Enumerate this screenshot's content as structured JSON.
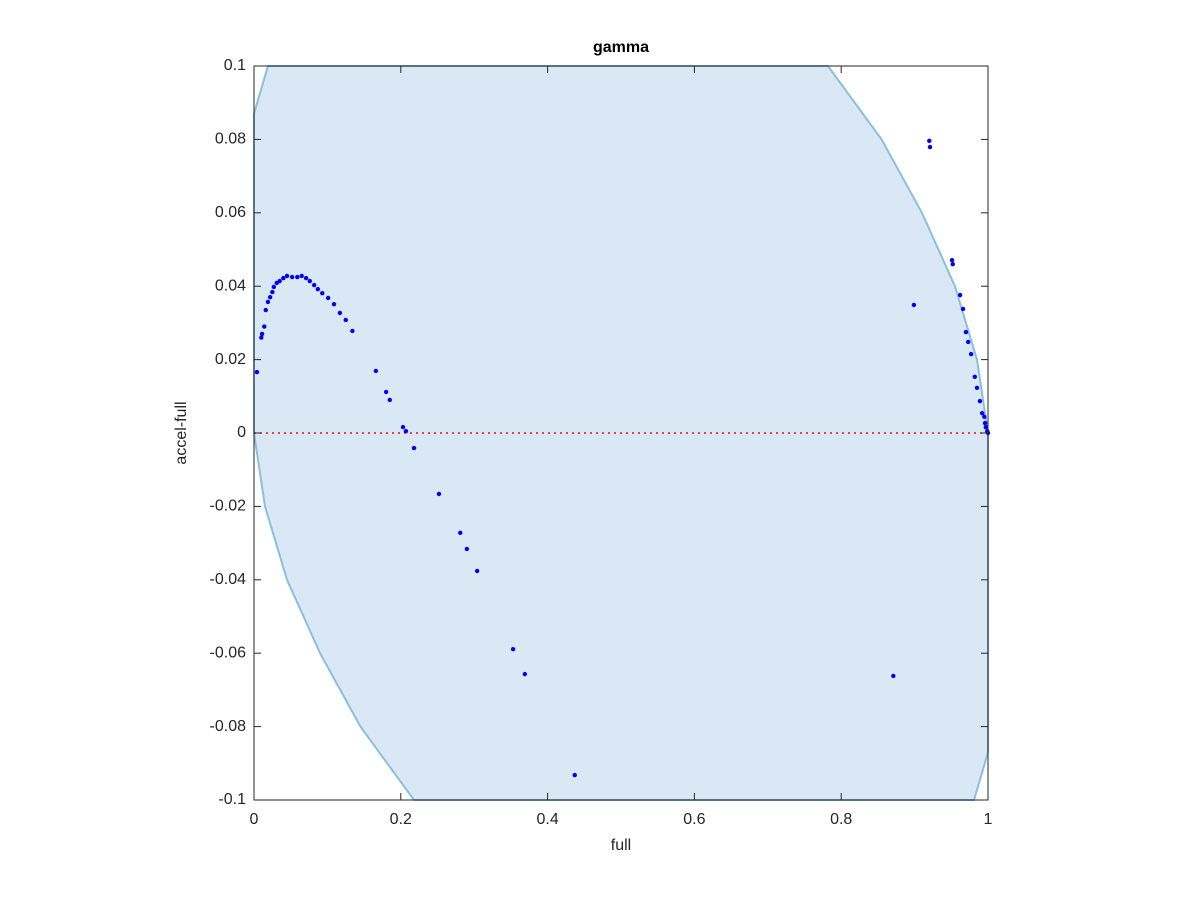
{
  "chart_data": {
    "type": "scatter",
    "title": "gamma",
    "x_label": "full",
    "y_label": "accel-full",
    "xlim": [
      0,
      1
    ],
    "ylim": [
      -0.1,
      0.1
    ],
    "xticks": [
      0,
      0.2,
      0.4,
      0.6,
      0.8,
      1
    ],
    "yticks": [
      -0.1,
      -0.08,
      -0.06,
      -0.04,
      -0.02,
      0,
      0.02,
      0.04,
      0.06,
      0.08,
      0.1
    ],
    "fill_region": {
      "color": "#d9e8f4",
      "edge_color": "#8bbfe0",
      "x": [
        0,
        0.019,
        0.782,
        0.855,
        0.91,
        0.955,
        0.985,
        1,
        1,
        0.981,
        0.218,
        0.145,
        0.09,
        0.045,
        0.015,
        0
      ],
      "y": [
        0.087,
        0.1,
        0.1,
        0.08,
        0.06,
        0.04,
        0.02,
        0,
        -0.087,
        -0.1,
        -0.1,
        -0.08,
        -0.06,
        -0.04,
        -0.02,
        0
      ]
    },
    "reference_line": {
      "y": 0,
      "color": "#ff0000"
    },
    "series": [
      {
        "color": "#0000ff",
        "x": [
          0.004,
          0.01,
          0.011,
          0.014,
          0.016,
          0.019,
          0.022,
          0.025,
          0.027,
          0.031,
          0.035,
          0.04,
          0.045,
          0.052,
          0.059,
          0.065,
          0.071,
          0.076,
          0.082,
          0.087,
          0.093,
          0.101,
          0.109,
          0.117,
          0.125,
          0.134,
          0.166,
          0.18,
          0.185,
          0.203,
          0.207,
          0.218,
          0.252,
          0.281,
          0.29,
          0.304,
          0.353,
          0.369,
          0.437,
          0.871,
          0.899,
          0.92,
          0.921,
          0.951,
          0.952,
          0.962,
          0.966,
          0.97,
          0.973,
          0.977,
          0.982,
          0.985,
          0.989,
          0.992,
          0.995,
          0.996,
          0.997,
          0.999,
          1.0
        ],
        "values": [
          0.0166,
          0.026,
          0.027,
          0.029,
          0.0335,
          0.0357,
          0.037,
          0.0384,
          0.0398,
          0.0409,
          0.0414,
          0.0422,
          0.0428,
          0.0425,
          0.0425,
          0.0428,
          0.0422,
          0.0414,
          0.0403,
          0.0392,
          0.0381,
          0.0368,
          0.0351,
          0.0327,
          0.0308,
          0.0278,
          0.0169,
          0.0112,
          0.009,
          0.0016,
          0.0005,
          -0.0041,
          -0.0166,
          -0.0272,
          -0.0316,
          -0.0376,
          -0.0589,
          -0.0657,
          -0.0932,
          -0.0662,
          0.0349,
          0.0796,
          0.0779,
          0.0471,
          0.046,
          0.0376,
          0.0338,
          0.0275,
          0.0248,
          0.0215,
          0.0153,
          0.0123,
          0.0087,
          0.0054,
          0.0044,
          0.0027,
          0.0016,
          0.0005,
          0.0
        ]
      }
    ]
  }
}
